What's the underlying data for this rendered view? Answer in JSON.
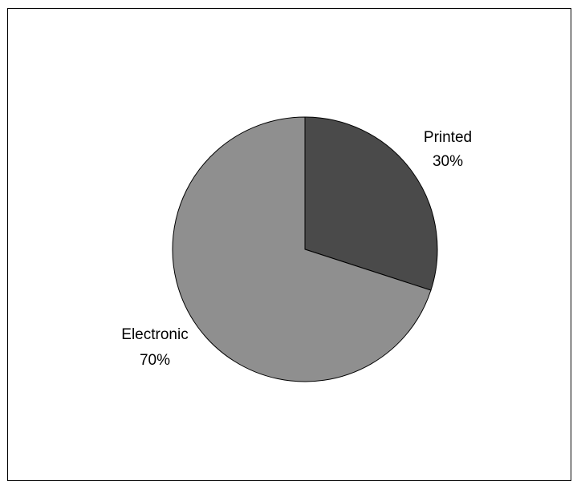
{
  "chart_data": {
    "type": "pie",
    "title": "",
    "legend": "none",
    "slices": [
      {
        "name": "Printed",
        "label": "30%",
        "value": 30,
        "color": "#4a4a4a"
      },
      {
        "name": "Electronic",
        "label": "70%",
        "value": 70,
        "color": "#8f8f8f"
      }
    ],
    "start_angle_deg": 0,
    "direction": "clockwise"
  }
}
